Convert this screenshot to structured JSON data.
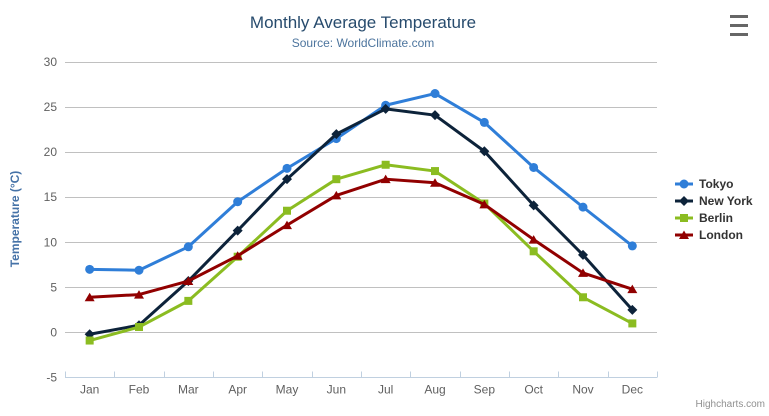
{
  "credit": "Highcharts.com",
  "chart_data": {
    "type": "line",
    "title": "Monthly Average Temperature",
    "subtitle": "Source: WorldClimate.com",
    "xlabel": "",
    "ylabel": "Temperature (°C)",
    "ylim": [
      -5,
      30
    ],
    "yticks": [
      -5,
      0,
      5,
      10,
      15,
      20,
      25,
      30
    ],
    "grid": true,
    "legend_position": "right",
    "categories": [
      "Jan",
      "Feb",
      "Mar",
      "Apr",
      "May",
      "Jun",
      "Jul",
      "Aug",
      "Sep",
      "Oct",
      "Nov",
      "Dec"
    ],
    "series": [
      {
        "name": "Tokyo",
        "color": "#2f7ed8",
        "marker": "circle",
        "values": [
          7.0,
          6.9,
          9.5,
          14.5,
          18.2,
          21.5,
          25.2,
          26.5,
          23.3,
          18.3,
          13.9,
          9.6
        ]
      },
      {
        "name": "New York",
        "color": "#0d233a",
        "marker": "diamond",
        "values": [
          -0.2,
          0.8,
          5.7,
          11.3,
          17.0,
          22.0,
          24.8,
          24.1,
          20.1,
          14.1,
          8.6,
          2.5
        ]
      },
      {
        "name": "Berlin",
        "color": "#8bbc21",
        "marker": "square",
        "values": [
          -0.9,
          0.6,
          3.5,
          8.4,
          13.5,
          17.0,
          18.6,
          17.9,
          14.3,
          9.0,
          3.9,
          1.0
        ]
      },
      {
        "name": "London",
        "color": "#910000",
        "marker": "triangle",
        "values": [
          3.9,
          4.2,
          5.7,
          8.5,
          11.9,
          15.2,
          17.0,
          16.6,
          14.2,
          10.3,
          6.6,
          4.8
        ]
      }
    ]
  },
  "colors": {
    "grid_line": "#C0C0C0",
    "axis_line": "#C0D0E0",
    "title_text": "#274b6d",
    "subtitle_text": "#4d759e",
    "axis_label_text": "#606060",
    "yaxis_title_text": "#4572a7",
    "legend_text": "#333333",
    "credit_text": "#909090",
    "menu_icon": "#666666"
  }
}
